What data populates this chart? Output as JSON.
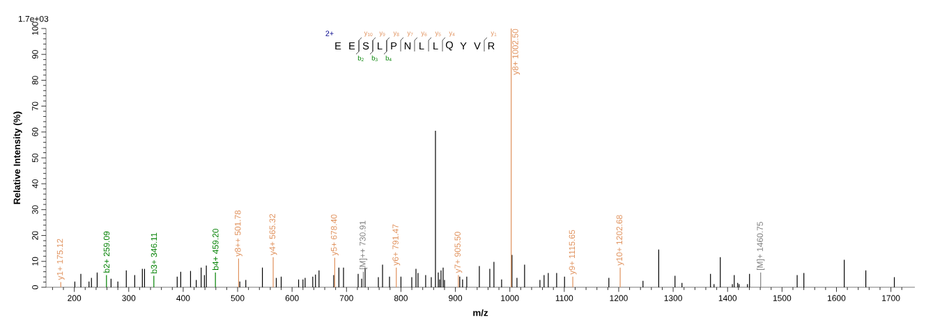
{
  "chart_data": {
    "type": "bar",
    "xlabel": "m/z",
    "ylabel": "Relative Intensity (%)",
    "xlim": [
      148,
      1744
    ],
    "ylim": [
      0,
      100
    ],
    "xticks": [
      {
        "value": 160,
        "label": null
      },
      {
        "value": 180,
        "label": null
      },
      200,
      {
        "value": 220,
        "label": null
      },
      {
        "value": 240,
        "label": null
      },
      {
        "value": 260,
        "label": null
      },
      {
        "value": 280,
        "label": null
      },
      300,
      {
        "value": 320,
        "label": null
      },
      {
        "value": 340,
        "label": null
      },
      {
        "value": 360,
        "label": null
      },
      {
        "value": 380,
        "label": null
      },
      400,
      {
        "value": 420,
        "label": null
      },
      {
        "value": 440,
        "label": null
      },
      {
        "value": 460,
        "label": null
      },
      {
        "value": 480,
        "label": null
      },
      500,
      {
        "value": 520,
        "label": null
      },
      {
        "value": 540,
        "label": null
      },
      {
        "value": 560,
        "label": null
      },
      {
        "value": 580,
        "label": null
      },
      600,
      {
        "value": 620,
        "label": null
      },
      {
        "value": 640,
        "label": null
      },
      {
        "value": 660,
        "label": null
      },
      {
        "value": 680,
        "label": null
      },
      700,
      {
        "value": 720,
        "label": null
      },
      {
        "value": 740,
        "label": null
      },
      {
        "value": 760,
        "label": null
      },
      {
        "value": 780,
        "label": null
      },
      800,
      {
        "value": 820,
        "label": null
      },
      {
        "value": 840,
        "label": null
      },
      {
        "value": 860,
        "label": null
      },
      {
        "value": 880,
        "label": null
      },
      900,
      {
        "value": 920,
        "label": null
      },
      {
        "value": 940,
        "label": null
      },
      {
        "value": 960,
        "label": null
      },
      {
        "value": 980,
        "label": null
      },
      1000,
      {
        "value": 1020,
        "label": null
      },
      {
        "value": 1040,
        "label": null
      },
      {
        "value": 1060,
        "label": null
      },
      {
        "value": 1080,
        "label": null
      },
      1100,
      {
        "value": 1120,
        "label": null
      },
      {
        "value": 1140,
        "label": null
      },
      {
        "value": 1160,
        "label": null
      },
      {
        "value": 1180,
        "label": null
      },
      1200,
      {
        "value": 1220,
        "label": null
      },
      {
        "value": 1240,
        "label": null
      },
      {
        "value": 1260,
        "label": null
      },
      {
        "value": 1280,
        "label": null
      },
      1300,
      {
        "value": 1320,
        "label": null
      },
      {
        "value": 1340,
        "label": null
      },
      {
        "value": 1360,
        "label": null
      },
      {
        "value": 1380,
        "label": null
      },
      1400,
      {
        "value": 1420,
        "label": null
      },
      {
        "value": 1440,
        "label": null
      },
      {
        "value": 1460,
        "label": null
      },
      {
        "value": 1480,
        "label": null
      },
      1500,
      {
        "value": 1520,
        "label": null
      },
      {
        "value": 1540,
        "label": null
      },
      {
        "value": 1560,
        "label": null
      },
      {
        "value": 1580,
        "label": null
      },
      1600,
      {
        "value": 1620,
        "label": null
      },
      {
        "value": 1640,
        "label": null
      },
      {
        "value": 1660,
        "label": null
      },
      {
        "value": 1680,
        "label": null
      },
      1700,
      {
        "value": 1720,
        "label": null
      }
    ],
    "yticks": [
      0,
      {
        "value": 2,
        "label": null
      },
      {
        "value": 4,
        "label": null
      },
      {
        "value": 6,
        "label": null
      },
      {
        "value": 8,
        "label": null
      },
      10,
      {
        "value": 12,
        "label": null
      },
      {
        "value": 14,
        "label": null
      },
      {
        "value": 16,
        "label": null
      },
      {
        "value": 18,
        "label": null
      },
      20,
      {
        "value": 22,
        "label": null
      },
      {
        "value": 24,
        "label": null
      },
      {
        "value": 26,
        "label": null
      },
      {
        "value": 28,
        "label": null
      },
      30,
      {
        "value": 32,
        "label": null
      },
      {
        "value": 34,
        "label": null
      },
      {
        "value": 36,
        "label": null
      },
      {
        "value": 38,
        "label": null
      },
      40,
      {
        "value": 42,
        "label": null
      },
      {
        "value": 44,
        "label": null
      },
      {
        "value": 46,
        "label": null
      },
      {
        "value": 48,
        "label": null
      },
      50,
      {
        "value": 52,
        "label": null
      },
      {
        "value": 54,
        "label": null
      },
      {
        "value": 56,
        "label": null
      },
      {
        "value": 58,
        "label": null
      },
      60,
      {
        "value": 62,
        "label": null
      },
      {
        "value": 64,
        "label": null
      },
      {
        "value": 66,
        "label": null
      },
      {
        "value": 68,
        "label": null
      },
      70,
      {
        "value": 72,
        "label": null
      },
      {
        "value": 74,
        "label": null
      },
      {
        "value": 76,
        "label": null
      },
      {
        "value": 78,
        "label": null
      },
      80,
      {
        "value": 82,
        "label": null
      },
      {
        "value": 84,
        "label": null
      },
      {
        "value": 86,
        "label": null
      },
      {
        "value": 88,
        "label": null
      },
      90,
      {
        "value": 92,
        "label": null
      },
      {
        "value": 94,
        "label": null
      },
      {
        "value": 96,
        "label": null
      },
      {
        "value": 98,
        "label": null
      },
      100
    ],
    "series": [
      {
        "color": "#000000",
        "x": [
          201,
          212,
          227,
          231.5,
          242,
          267.5,
          280,
          295.5,
          311,
          325,
          329,
          389,
          395.5,
          413.5,
          424,
          433,
          439,
          442.5,
          504,
          515,
          545.5,
          571,
          580,
          612,
          620,
          624,
          638,
          643,
          649.5,
          676.5,
          686,
          694.5,
          721.4,
          727.8,
          734.2,
          758.5,
          766.2,
          779,
          800,
          819.9,
          827.6,
          831.4,
          845.4,
          855.7,
          863.4,
          868.5,
          871.1,
          873.6,
          877.5,
          880,
          908,
          913.2,
          920.9,
          944,
          963.2,
          970.8,
          984.9,
          1004,
          1013.1,
          1027.1,
          1055.3,
          1062.9,
          1070.6,
          1086,
          1100.5,
          1181.9,
          1244.6,
          1273.5,
          1303.4,
          1316.2,
          1368.6,
          1375.1,
          1386.6,
          1408.8,
          1412.2,
          1418.5,
          1421.1,
          1436.5,
          1440.3,
          1527.8,
          1540.1,
          1614.3,
          1653.9,
          1706.3
        ],
        "values": [
          2.2,
          5.2,
          2.2,
          3.6,
          5.7,
          3.3,
          2.2,
          6.5,
          4.7,
          7.1,
          7.1,
          4.1,
          6.0,
          6.3,
          2.8,
          7.6,
          4.7,
          8.4,
          2.2,
          2.8,
          7.6,
          3.6,
          4.1,
          3.0,
          3.0,
          3.6,
          4.1,
          4.9,
          6.5,
          4.7,
          7.6,
          7.6,
          5.2,
          3.3,
          7.6,
          3.9,
          8.7,
          4.1,
          4.1,
          3.9,
          7.1,
          5.5,
          4.7,
          3.9,
          60.5,
          5.7,
          3.0,
          6.5,
          7.6,
          2.8,
          4.1,
          3.0,
          4.1,
          8.2,
          7.1,
          9.8,
          3.0,
          12.5,
          3.6,
          8.7,
          2.8,
          4.7,
          5.5,
          5.5,
          4.1,
          3.6,
          2.5,
          14.6,
          4.4,
          1.7,
          5.2,
          1.2,
          11.6,
          1.2,
          4.7,
          1.7,
          1.2,
          1.2,
          5.2,
          4.7,
          5.5,
          10.6,
          6.5,
          3.9
        ]
      },
      {
        "color": "#e0915c",
        "x": [
          175.12,
          501.78,
          565.32,
          678.4,
          791.47,
          905.5,
          1002.5,
          1115.65,
          1202.68
        ],
        "values": [
          2.0,
          11.1,
          11.6,
          11.4,
          7.6,
          4.7,
          100,
          4.1,
          7.6
        ]
      },
      {
        "color": "#008000",
        "x": [
          259.09,
          346.11,
          459.2
        ],
        "values": [
          4.7,
          4.4,
          5.7
        ]
      },
      {
        "color": "#808080",
        "x": [
          730.91,
          1460.75
        ],
        "values": [
          6.0,
          5.7
        ]
      }
    ],
    "annotations": [
      "1.7e+03",
      "2+",
      "E",
      "E",
      "S",
      "L",
      "P",
      "N",
      "L",
      "L",
      "Q",
      "Y",
      "V",
      "R",
      "y$_{10}$",
      "y$_{9}$",
      "y$_{8}$",
      "y$_{7}$",
      "y$_{6}$",
      "y$_{5}$",
      "y$_{4}$",
      "y$_{1}$",
      "b$_{2}$",
      "b$_{3}$",
      "b$_{4}$",
      {
        "text": "y1+ 175.12",
        "x": 175.12,
        "y": 2.0
      },
      {
        "text": "b2+ 259.09",
        "x": 259.09,
        "y": 4.7
      },
      {
        "text": "b3+ 346.11",
        "x": 346.11,
        "y": 4.4
      },
      {
        "text": "b4+ 459.20",
        "x": 459.2,
        "y": 5.7
      },
      {
        "text": "y8++ 501.78",
        "x": 501.78,
        "y": 11.1
      },
      {
        "text": "y4+ 565.32",
        "x": 565.32,
        "y": 11.6
      },
      {
        "text": "y5+ 678.40",
        "x": 678.4,
        "y": 11.4
      },
      {
        "text": "[M]++ 730.91",
        "x": 730.91,
        "y": 6.0
      },
      {
        "text": "y6+ 791.47",
        "x": 791.47,
        "y": 7.6
      },
      {
        "text": "y7+ 905.50",
        "x": 905.5,
        "y": 4.7
      },
      {
        "text": "y8+ 1002.50",
        "x": 1002.5,
        "y": 100
      },
      {
        "text": "y9+ 1115.65",
        "x": 1115.65,
        "y": 4.1
      },
      {
        "text": "y10+ 1202.68",
        "x": 1202.68,
        "y": 7.6
      },
      {
        "text": "[M]+ 1460.75",
        "x": 1460.75,
        "y": 5.7
      }
    ]
  }
}
